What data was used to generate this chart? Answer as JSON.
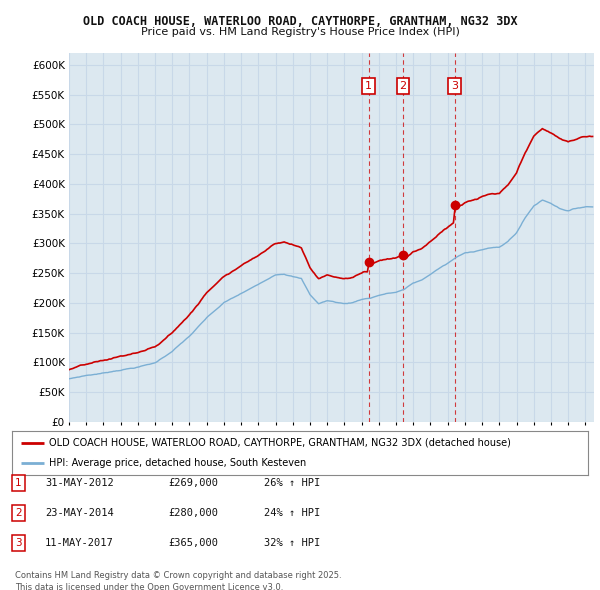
{
  "title1": "OLD COACH HOUSE, WATERLOO ROAD, CAYTHORPE, GRANTHAM, NG32 3DX",
  "title2": "Price paid vs. HM Land Registry's House Price Index (HPI)",
  "legend_line1": "OLD COACH HOUSE, WATERLOO ROAD, CAYTHORPE, GRANTHAM, NG32 3DX (detached house)",
  "legend_line2": "HPI: Average price, detached house, South Kesteven",
  "footer": "Contains HM Land Registry data © Crown copyright and database right 2025.\nThis data is licensed under the Open Government Licence v3.0.",
  "transactions": [
    {
      "num": 1,
      "date": "31-MAY-2012",
      "price": 269000,
      "hpi_pct": "26%",
      "direction": "↑"
    },
    {
      "num": 2,
      "date": "23-MAY-2014",
      "price": 280000,
      "hpi_pct": "24%",
      "direction": "↑"
    },
    {
      "num": 3,
      "date": "11-MAY-2017",
      "price": 365000,
      "hpi_pct": "32%",
      "direction": "↑"
    }
  ],
  "ylim": [
    0,
    620000
  ],
  "yticks": [
    0,
    50000,
    100000,
    150000,
    200000,
    250000,
    300000,
    350000,
    400000,
    450000,
    500000,
    550000,
    600000
  ],
  "red_color": "#cc0000",
  "blue_color": "#7bafd4",
  "vline_color": "#cc0000",
  "grid_color": "#c8d8e8",
  "chart_bg": "#dce8f0",
  "bg_color": "#ffffff",
  "trans_dates": [
    2012.41,
    2014.41,
    2017.41
  ],
  "trans_prices": [
    269000,
    280000,
    365000
  ],
  "xlim": [
    1995,
    2025.5
  ]
}
